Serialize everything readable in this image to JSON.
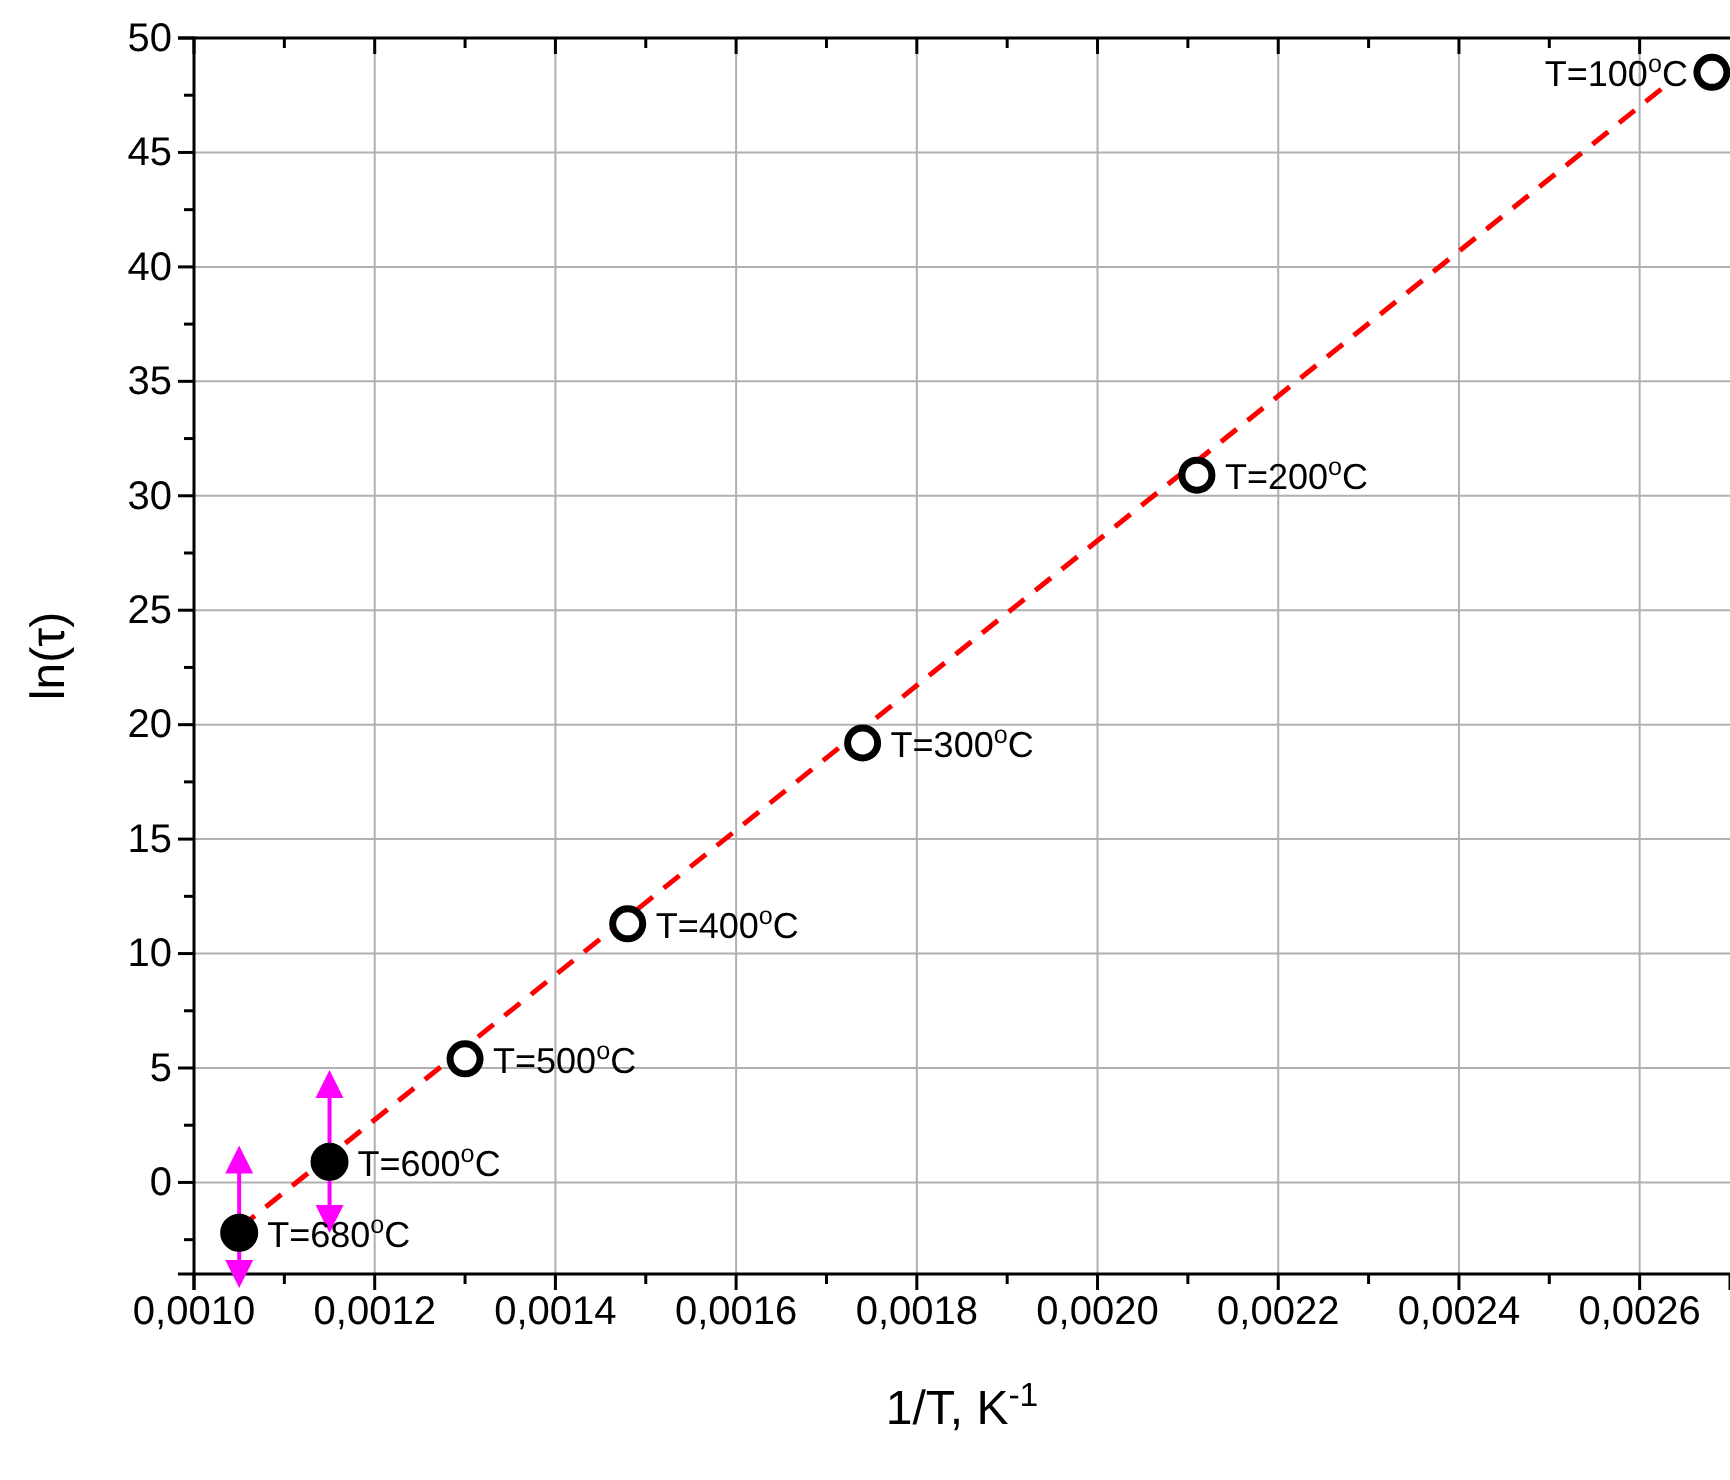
{
  "chart_data": {
    "type": "scatter",
    "xlabel": "1/T, K$^{-1}$",
    "ylabel": "ln(τ)",
    "xlim": [
      0.001,
      0.0027
    ],
    "ylim": [
      -4,
      50
    ],
    "xticks": [
      {
        "value": 0.001,
        "label": "0,0010"
      },
      {
        "value": 0.0012,
        "label": "0,0012"
      },
      {
        "value": 0.0014,
        "label": "0,0014"
      },
      {
        "value": 0.0016,
        "label": "0,0016"
      },
      {
        "value": 0.0018,
        "label": "0,0018"
      },
      {
        "value": 0.002,
        "label": "0,0020"
      },
      {
        "value": 0.0022,
        "label": "0,0022"
      },
      {
        "value": 0.0024,
        "label": "0,0024"
      },
      {
        "value": 0.0026,
        "label": "0,0026"
      }
    ],
    "yticks": [
      0,
      5,
      10,
      15,
      20,
      25,
      30,
      35,
      40,
      45,
      50
    ],
    "grid": true,
    "series": [
      {
        "marker": "circle",
        "color": "#000000",
        "x": [
          0.00105,
          0.00115
        ],
        "values": [
          -2.2,
          0.9
        ],
        "errors": [
          [
            -4,
            1.0
          ],
          [
            -1.6,
            4.3
          ]
        ]
      },
      {
        "marker": "circle-open",
        "color": "#000000",
        "x": [
          0.0013,
          0.00148,
          0.00174,
          0.00211,
          0.00268
        ],
        "values": [
          5.4,
          11.3,
          19.2,
          30.9,
          48.5
        ]
      },
      {
        "type": "line",
        "line_style": "dashed",
        "marker": "none",
        "color": "#ff0000",
        "x": [
          0.00105,
          0.002625
        ],
        "values": [
          -2.0,
          47.8
        ]
      }
    ],
    "annotations": [
      {
        "text": "T=680$^{o}$C",
        "x": 0.00105,
        "y": -2.2
      },
      {
        "text": "T=600$^{o}$C",
        "x": 0.00115,
        "y": 0.9
      },
      {
        "text": "T=500$^{o}$C",
        "x": 0.0013,
        "y": 5.4
      },
      {
        "text": "T=400$^{o}$C",
        "x": 0.00148,
        "y": 11.3
      },
      {
        "text": "T=300$^{o}$C",
        "x": 0.00174,
        "y": 19.2
      },
      {
        "text": "T=200$^{o}$C",
        "x": 0.00211,
        "y": 30.9
      },
      {
        "text": "T=100$^{o}$C",
        "x": 0.00268,
        "y": 48.5
      }
    ]
  }
}
